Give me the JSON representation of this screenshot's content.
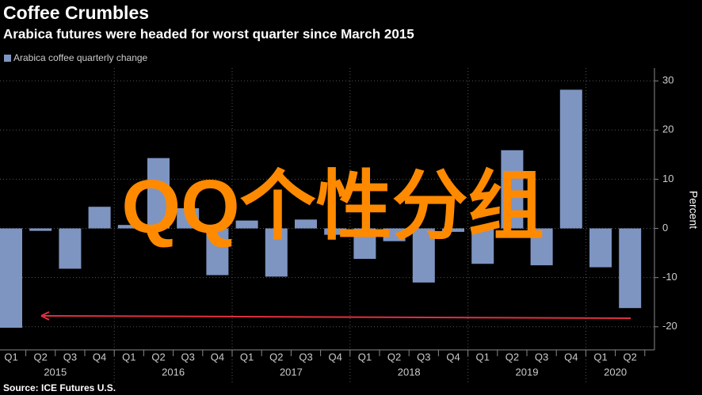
{
  "chart_data": {
    "type": "bar",
    "title": "Coffee Crumbles",
    "subtitle": "Arabica futures were headed for worst quarter since March 2015",
    "series": [
      {
        "name": "Arabica coffee quarterly change",
        "color": "#7e95c2",
        "values": [
          -20.2,
          -0.5,
          -8.2,
          4.4,
          0.7,
          14.3,
          4.1,
          -9.5,
          1.6,
          -9.8,
          1.8,
          -1.3,
          -6.2,
          -2.6,
          -11.0,
          -0.7,
          -7.2,
          15.9,
          -7.5,
          28.2,
          -7.9,
          -16.2
        ]
      }
    ],
    "categories": [
      "Q1",
      "Q2",
      "Q3",
      "Q4",
      "Q1",
      "Q2",
      "Q3",
      "Q4",
      "Q1",
      "Q2",
      "Q3",
      "Q4",
      "Q1",
      "Q2",
      "Q3",
      "Q4",
      "Q1",
      "Q2",
      "Q3",
      "Q4",
      "Q1",
      "Q2"
    ],
    "years": [
      "2015",
      "2016",
      "2017",
      "2018",
      "2019",
      "2020"
    ],
    "y_label": "Percent",
    "ylim": [
      -24.7,
      32.6
    ],
    "yticks": [
      -20,
      -10,
      0,
      10,
      20,
      30
    ],
    "grid": true,
    "source": "Source: ICE Futures U.S.",
    "overlay_text": "QQ个性分组"
  }
}
